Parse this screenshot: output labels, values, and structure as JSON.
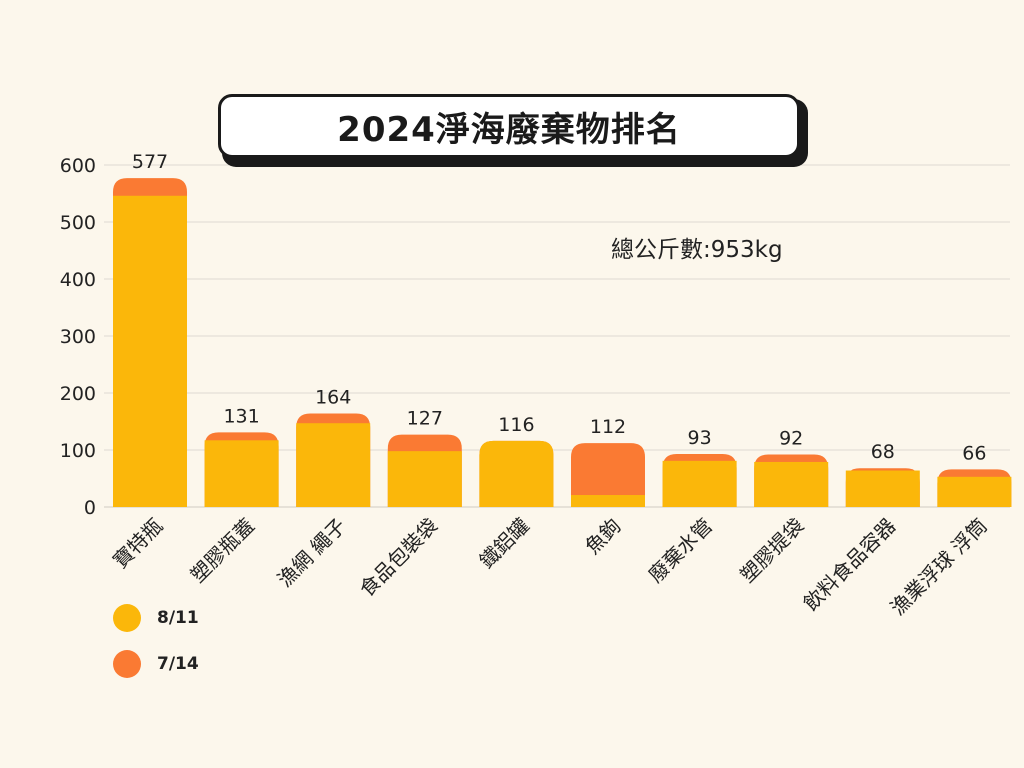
{
  "title": "2024淨海廢棄物排名",
  "total_label": "總公斤數:953kg",
  "colors": {
    "series1": "#fbb70a",
    "series2": "#fa7a33",
    "background": "#fcf7ec",
    "grid": "#dedad2"
  },
  "legend": [
    {
      "label": "8/11",
      "color": "#fbb70a"
    },
    {
      "label": "7/14",
      "color": "#fa7a33"
    }
  ],
  "chart_data": {
    "type": "bar",
    "stacked": true,
    "categories": [
      "寶特瓶",
      "塑膠瓶蓋",
      "漁網 繩子",
      "食品包裝袋",
      "鐵鋁罐",
      "魚鉤",
      "廢棄水管",
      "塑膠提袋",
      "飲料食品容器",
      "漁業浮球 浮筒"
    ],
    "series": [
      {
        "name": "8/11",
        "values": [
          546,
          117,
          147,
          98,
          114,
          21,
          81,
          79,
          64,
          53
        ]
      },
      {
        "name": "7/14",
        "values": [
          31,
          14,
          17,
          29,
          2,
          91,
          12,
          13,
          4,
          13
        ]
      }
    ],
    "totals": [
      "577",
      "131",
      "164",
      "127",
      "116",
      "112",
      "93",
      "92",
      "68",
      "66"
    ],
    "yticks": [
      "0",
      "100",
      "200",
      "300",
      "400",
      "500",
      "600"
    ],
    "ylim": [
      0,
      600
    ],
    "grid": true,
    "legend_position": "bottom-left"
  }
}
